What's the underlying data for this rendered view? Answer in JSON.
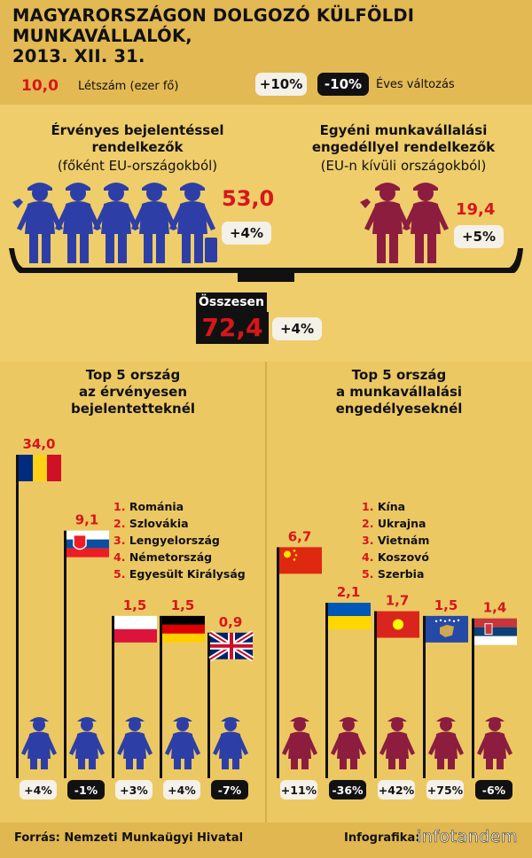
{
  "title_line1": "MAGYARORSZÁGON DOLGOZÓ KÜLFÖLDI MUNKAVÁLLALÓK,",
  "title_line2": "2013. XII. 31.",
  "legend": {
    "sample_value": "10,0",
    "sample_label": "Létszám (ezer fő)",
    "plus_pill": "+10%",
    "minus_pill": "-10%",
    "change_label": "Éves változás"
  },
  "registered": {
    "title_line1": "Érvényes bejelentéssel",
    "title_line2": "rendelkezők",
    "subtitle": "(főként EU-országokból)",
    "value": "53,0",
    "change": "+4%"
  },
  "permit": {
    "title_line1": "Egyéni munkavállalási",
    "title_line2": "engedéllyel rendelkezők",
    "subtitle": "(EU-n kívüli országokból)",
    "value": "19,4",
    "change": "+5%"
  },
  "total": {
    "label": "Összesen",
    "value": "72,4",
    "change": "+4%"
  },
  "colors": {
    "background": "#e3bd57",
    "band": "#f0ce6c",
    "blue_worker": "#2d3fa6",
    "red_worker": "#8c1d3f",
    "red_text": "#d8161a"
  },
  "chart_data": [
    {
      "type": "bar",
      "title_lines": [
        "Top 5 ország",
        "az érvényesen",
        "bejelentetteknél"
      ],
      "categories": [
        "Románia",
        "Szlovákia",
        "Lengyelország",
        "Németország",
        "Egyesült Királyság"
      ],
      "list_numbers": [
        "1.",
        "2.",
        "3.",
        "4.",
        "5."
      ],
      "values": [
        34.0,
        9.1,
        1.5,
        1.5,
        0.9
      ],
      "value_labels": [
        "34,0",
        "9,1",
        "1,5",
        "1,5",
        "0,9"
      ],
      "changes": [
        "+4%",
        "-1%",
        "+3%",
        "+4%",
        "-7%"
      ],
      "change_dark": [
        false,
        true,
        false,
        false,
        true
      ],
      "flags": [
        "romania-flag",
        "slovakia-flag",
        "poland-flag",
        "germany-flag",
        "uk-flag"
      ]
    },
    {
      "type": "bar",
      "title_lines": [
        "Top 5 ország",
        "a munkavállalási",
        "engedélyeseknél"
      ],
      "categories": [
        "Kína",
        "Ukrajna",
        "Vietnám",
        "Koszovó",
        "Szerbia"
      ],
      "list_numbers": [
        "1.",
        "2.",
        "3.",
        "4.",
        "5."
      ],
      "values": [
        6.7,
        2.1,
        1.7,
        1.5,
        1.4
      ],
      "value_labels": [
        "6,7",
        "2,1",
        "1,7",
        "1,5",
        "1,4"
      ],
      "changes": [
        "+11%",
        "-36%",
        "+42%",
        "+75%",
        "-6%"
      ],
      "change_dark": [
        false,
        true,
        false,
        false,
        true
      ],
      "flags": [
        "china-flag",
        "ukraine-flag",
        "vietnam-flag",
        "kosovo-flag",
        "serbia-flag"
      ]
    }
  ],
  "footer": {
    "source": "Forrás: Nemzeti Munkaügyi Hivatal",
    "credit_label": "Infografika:",
    "brand": "infotandem"
  }
}
